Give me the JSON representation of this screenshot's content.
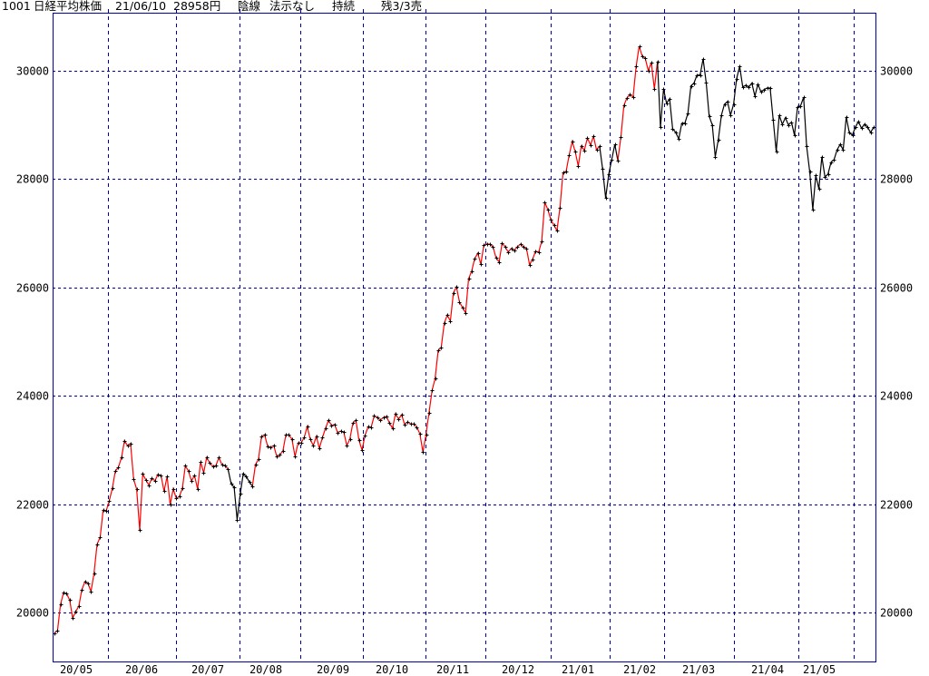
{
  "header": {
    "code": "1001",
    "name": "日経平均株価",
    "date": "21/06/10",
    "price": "28958円",
    "candle": "陰線",
    "display": "法示なし",
    "trend": "持続",
    "remaining": "残3/3売"
  },
  "chart_data": {
    "type": "line",
    "title": "",
    "xlabel": "",
    "ylabel": "",
    "ylim": [
      19080,
      31070
    ],
    "yticks": [
      20000,
      22000,
      24000,
      26000,
      28000,
      30000
    ],
    "x_tick_labels": [
      "20/05",
      "20/06",
      "20/07",
      "20/08",
      "20/09",
      "20/10",
      "20/11",
      "20/12",
      "21/01",
      "21/02",
      "21/03",
      "21/04",
      "21/05"
    ],
    "grid": true,
    "markers": "plus",
    "colors": {
      "frame": "#0000a0",
      "grid": "#0000a0",
      "up_signal": "#ff0000",
      "down_signal": "#000000",
      "marker": "#000000"
    },
    "runs": [
      {
        "color": "#ff0000",
        "values": [
          19620,
          19670,
          20150,
          20370,
          20350,
          20230,
          19900,
          20020,
          20120,
          20420,
          20570,
          20540,
          20390,
          20720,
          21260,
          21390,
          21890,
          21880,
          22060,
          22290,
          22610,
          22680,
          22860,
          23170,
          23080,
          23120,
          22460,
          22280,
          21520,
          22560,
          22450,
          22350,
          22480,
          22430,
          22550,
          22530,
          22240,
          22510,
          21990,
          22280,
          22110,
          22140,
          22290,
          22710,
          22610,
          22430,
          22530,
          22280,
          22780,
          22580,
          22860,
          22760,
          22700,
          22710,
          22860,
          22730,
          22710,
          22650
        ]
      },
      {
        "color": "#000000",
        "values": [
          22650,
          22380,
          22310,
          21710,
          22190,
          22560,
          22510,
          22410,
          22330
        ]
      },
      {
        "color": "#ff0000",
        "values": [
          22330,
          22730,
          22830,
          23250,
          23280,
          23070,
          23050,
          23080,
          22880,
          22910,
          22980,
          23280,
          23280,
          23200,
          22880,
          23130,
          23130,
          23230,
          23430,
          23200,
          23080,
          23250,
          23030,
          23230,
          23400,
          23550,
          23450,
          23470,
          23320,
          23350,
          23330,
          23080,
          23200,
          23500,
          23550,
          23180,
          23000,
          23270,
          23430,
          23420,
          23630,
          23600,
          23550,
          23600,
          23620,
          23500,
          23400,
          23670,
          23570,
          23650,
          23470,
          23520,
          23480,
          23480,
          23420,
          23300,
          22960,
          23280,
          23690,
          24100,
          24320,
          24840,
          24890,
          25340,
          25490,
          25380,
          25900,
          26010,
          25730,
          25630,
          25530,
          26160,
          26300,
          26530,
          26630,
          26430,
          26780,
          26800,
          26800,
          26750,
          26550,
          26470,
          26820,
          26750,
          26650,
          26720,
          26680,
          26750,
          26800,
          26750,
          26720,
          26420,
          26520,
          26670,
          26650,
          26850,
          27570,
          27440,
          27250,
          27150,
          27050,
          27470,
          28120,
          28140,
          28440,
          28690,
          28510,
          28240,
          28610,
          28530,
          28760,
          28630,
          28790,
          28540,
          28610
        ]
      },
      {
        "color": "#000000",
        "values": [
          28610,
          28190,
          27650,
          28090,
          28360,
          28640,
          28340
        ]
      },
      {
        "color": "#ff0000",
        "values": [
          28340,
          28780,
          29360,
          29500,
          29560,
          29510,
          30080,
          30450,
          30270,
          30230,
          30000,
          30150,
          29660,
          30170
        ]
      },
      {
        "color": "#000000",
        "values": [
          30170,
          28960,
          29660,
          29400,
          29480,
          28930,
          28860,
          28740,
          29030,
          29030,
          29210,
          29720,
          29770,
          29920,
          29920,
          30220,
          29780,
          29160,
          29000,
          28410,
          28730,
          29180,
          29380,
          29430,
          29180,
          29380,
          29850,
          30080,
          29700,
          29730,
          29700,
          29770,
          29530,
          29750,
          29610,
          29650,
          29680,
          29680,
          29100,
          28510,
          29180,
          29010,
          29130,
          29000,
          29050,
          28810,
          29330,
          29350,
          29510,
          28610,
          28140,
          27440,
          28070,
          27820,
          28410,
          28040,
          28090,
          28310,
          28360,
          28540,
          28640,
          28540,
          29150,
          28860,
          28810,
          28960,
          29060,
          28940,
          29010,
          28960,
          28860,
          28958
        ]
      }
    ]
  }
}
